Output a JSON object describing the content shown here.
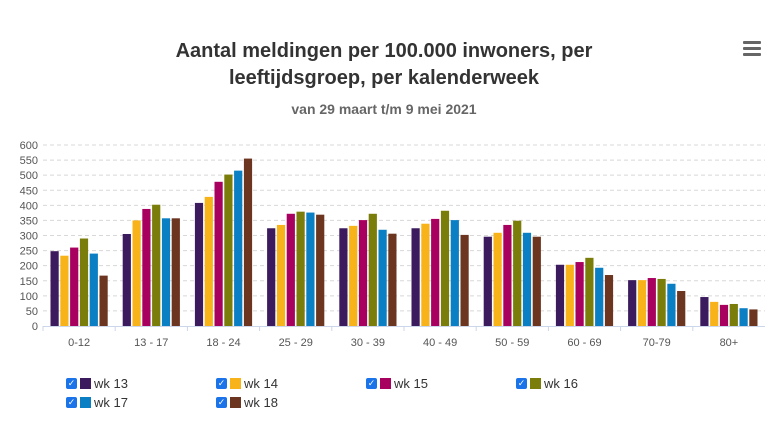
{
  "chart_data": {
    "type": "bar",
    "title": "Aantal meldingen per 100.000 inwoners, per leeftijdsgroep, per kalenderweek",
    "title_lines": [
      "Aantal meldingen per 100.000 inwoners, per",
      "leeftijdsgroep, per kalenderweek"
    ],
    "subtitle": "van 29 maart t/m 9 mei 2021",
    "categories": [
      "0-12",
      "13 - 17",
      "18 - 24",
      "25 - 29",
      "30 - 39",
      "40 - 49",
      "50 - 59",
      "60 - 69",
      "70-79",
      "80+"
    ],
    "ylim": [
      0,
      600
    ],
    "yticks": [
      0,
      50,
      100,
      150,
      200,
      250,
      300,
      350,
      400,
      450,
      500,
      550,
      600
    ],
    "grid": true,
    "legend_position": "bottom",
    "series": [
      {
        "name": "wk 13",
        "color": "#3b1a5e",
        "values": [
          248,
          305,
          408,
          324,
          324,
          324,
          296,
          203,
          152,
          96
        ]
      },
      {
        "name": "wk 14",
        "color": "#f9b31a",
        "values": [
          233,
          350,
          428,
          335,
          332,
          339,
          309,
          203,
          152,
          80
        ]
      },
      {
        "name": "wk 15",
        "color": "#a8005f",
        "values": [
          260,
          388,
          478,
          372,
          351,
          355,
          335,
          212,
          159,
          70
        ]
      },
      {
        "name": "wk 16",
        "color": "#7a7d0a",
        "values": [
          290,
          402,
          502,
          379,
          372,
          382,
          349,
          226,
          156,
          73
        ]
      },
      {
        "name": "wk 17",
        "color": "#0a7fc4",
        "values": [
          240,
          357,
          515,
          376,
          319,
          351,
          309,
          193,
          140,
          59
        ]
      },
      {
        "name": "wk 18",
        "color": "#6b3520",
        "values": [
          167,
          357,
          555,
          369,
          306,
          302,
          296,
          169,
          116,
          55
        ]
      }
    ]
  },
  "menu_icon": "hamburger-icon",
  "checkbox_mark": "✓"
}
